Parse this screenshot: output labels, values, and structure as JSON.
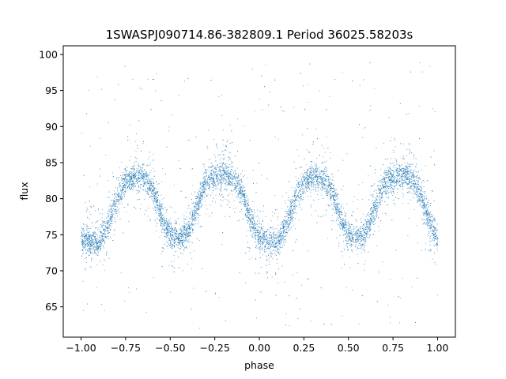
{
  "chart_data": {
    "type": "scatter",
    "title": "1SWASPJ090714.86-382809.1 Period 36025.58203s",
    "xlabel": "phase",
    "ylabel": "flux",
    "xlim": [
      -1.1,
      1.1
    ],
    "ylim": [
      60.8,
      101.2
    ],
    "xticks": [
      -1.0,
      -0.75,
      -0.5,
      -0.25,
      0.0,
      0.25,
      0.5,
      0.75,
      1.0
    ],
    "xtick_labels": [
      "−1.00",
      "−0.75",
      "−0.50",
      "−0.25",
      "0.00",
      "0.25",
      "0.50",
      "0.75",
      "1.00"
    ],
    "yticks": [
      65,
      70,
      75,
      80,
      85,
      90,
      95,
      100
    ],
    "ytick_labels": [
      "65",
      "70",
      "75",
      "80",
      "85",
      "90",
      "95",
      "100"
    ],
    "grid": false,
    "marker_color": "#1f77b4",
    "series": [
      {
        "description_points": [
          [
            -1.0,
            74.5
          ],
          [
            -0.95,
            74.2
          ],
          [
            -0.9,
            74.0
          ],
          [
            -0.85,
            76.5
          ],
          [
            -0.8,
            80.0
          ],
          [
            -0.75,
            82.5
          ],
          [
            -0.7,
            83.2
          ],
          [
            -0.65,
            83.0
          ],
          [
            -0.6,
            81.5
          ],
          [
            -0.55,
            77.5
          ],
          [
            -0.5,
            75.0
          ],
          [
            -0.45,
            74.8
          ],
          [
            -0.4,
            75.5
          ],
          [
            -0.35,
            79.0
          ],
          [
            -0.3,
            82.5
          ],
          [
            -0.25,
            83.2
          ],
          [
            -0.2,
            83.5
          ],
          [
            -0.15,
            83.0
          ],
          [
            -0.1,
            81.0
          ],
          [
            -0.05,
            77.0
          ],
          [
            0.0,
            74.5
          ],
          [
            0.05,
            74.2
          ],
          [
            0.1,
            74.0
          ],
          [
            0.15,
            76.5
          ],
          [
            0.2,
            80.0
          ],
          [
            0.25,
            82.5
          ],
          [
            0.3,
            83.2
          ],
          [
            0.35,
            83.0
          ],
          [
            0.4,
            81.5
          ],
          [
            0.45,
            77.5
          ],
          [
            0.5,
            75.0
          ],
          [
            0.55,
            74.8
          ],
          [
            0.6,
            75.5
          ],
          [
            0.65,
            79.0
          ],
          [
            0.7,
            82.5
          ],
          [
            0.75,
            83.2
          ],
          [
            0.8,
            83.5
          ],
          [
            0.85,
            83.0
          ],
          [
            0.9,
            81.0
          ],
          [
            0.95,
            77.0
          ],
          [
            1.0,
            74.5
          ]
        ]
      }
    ]
  }
}
